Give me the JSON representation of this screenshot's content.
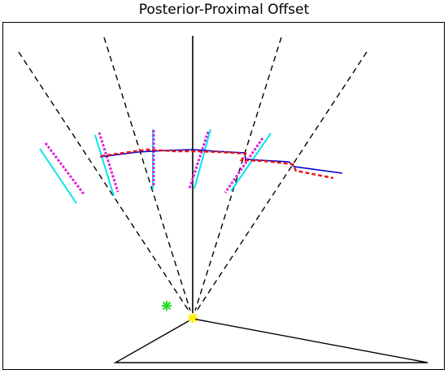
{
  "title": "Posterior-Proximal Offset",
  "colors": {
    "dashed_rays": "#000000",
    "center_line": "#000000",
    "base_triangle": "#000000",
    "cyan_segments": "#00e5ee",
    "magenta_segments": "#dd22dd",
    "blue_curve": "#0000cc",
    "red_curve": "#ee1111",
    "yellow_marker": "#ffee00",
    "green_marker": "#22dd22"
  },
  "markers": {
    "yellow": "yellow-asterisk",
    "green": "green-asterisk"
  }
}
